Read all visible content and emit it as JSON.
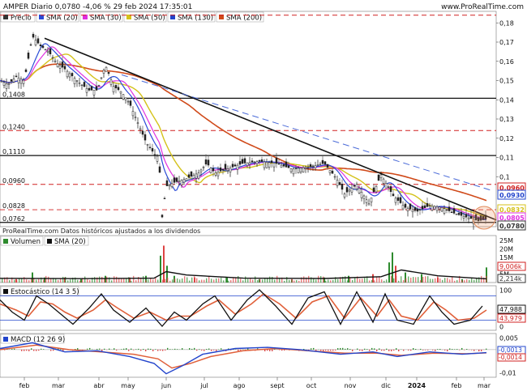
{
  "header": {
    "title": "AMPER Diario 0,0780 -4,06 % 29 feb 2024 17:35:01",
    "site": "www.ProRealTime.com"
  },
  "chart_data": [
    {
      "type": "candlestick",
      "panel": "price",
      "legend": [
        "Precio",
        "SMA (20)",
        "SMA (30)",
        "SMA (50)",
        "SMA (130)",
        "SMA (200)"
      ],
      "series_colors": {
        "Precio": "#333333",
        "SMA (20)": "#2a4bd7",
        "SMA (30)": "#e030e0",
        "SMA (50)": "#d4c21a",
        "SMA (130)": "#2244cc",
        "SMA (200)": "#d04a1a"
      },
      "ylim": [
        0.074,
        0.186
      ],
      "yticks": [
        0.18,
        0.17,
        0.16,
        0.15,
        0.14,
        0.13,
        0.12,
        0.11,
        0.1
      ],
      "ytick_labels": [
        "0,18",
        "0,17",
        "0,16",
        "0,15",
        "0,14",
        "0,13",
        "0,12",
        "0,11",
        "0,1"
      ],
      "horizontal_levels": [
        {
          "value": 0.1408,
          "label": "0,1408",
          "style": "solid"
        },
        {
          "value": 0.124,
          "label": "0,1240",
          "style": "dashed"
        },
        {
          "value": 0.111,
          "label": "0,1110",
          "style": "solid"
        },
        {
          "value": 0.096,
          "label": "0,0960",
          "style": "dashed"
        },
        {
          "value": 0.0828,
          "label": "0,0828",
          "style": "dashed"
        },
        {
          "value": 0.0762,
          "label": "0,0762",
          "style": "solid"
        },
        {
          "value": 0.184,
          "label": "",
          "style": "dashed"
        }
      ],
      "right_badges": [
        {
          "value": 0.096,
          "label": "0,0960",
          "color": "#d02020"
        },
        {
          "value": 0.093,
          "label": "0,0930",
          "color": "#2244cc"
        },
        {
          "value": 0.0832,
          "label": "0,0832",
          "color": "#d4c21a"
        },
        {
          "value": 0.0805,
          "label": "0,0805",
          "color": "#e030e0"
        },
        {
          "value": 0.078,
          "label": "0,0780",
          "color": "#333333"
        }
      ],
      "annotation": "ProRealTime.com Datos históricos ajustados a los dividendos",
      "xlabels": [
        "feb",
        "mar",
        "abr",
        "may",
        "jun",
        "jul",
        "ago",
        "sept",
        "oct",
        "nov",
        "dic",
        "2024",
        "feb",
        "mar"
      ],
      "close_path": [
        {
          "x": 0,
          "y": 0.15
        },
        {
          "x": 10,
          "y": 0.148
        },
        {
          "x": 20,
          "y": 0.152
        },
        {
          "x": 30,
          "y": 0.15
        },
        {
          "x": 40,
          "y": 0.173
        },
        {
          "x": 50,
          "y": 0.168
        },
        {
          "x": 60,
          "y": 0.165
        },
        {
          "x": 70,
          "y": 0.159
        },
        {
          "x": 80,
          "y": 0.156
        },
        {
          "x": 90,
          "y": 0.152
        },
        {
          "x": 100,
          "y": 0.148
        },
        {
          "x": 110,
          "y": 0.145
        },
        {
          "x": 120,
          "y": 0.145
        },
        {
          "x": 130,
          "y": 0.158
        },
        {
          "x": 140,
          "y": 0.147
        },
        {
          "x": 150,
          "y": 0.144
        },
        {
          "x": 160,
          "y": 0.138
        },
        {
          "x": 170,
          "y": 0.128
        },
        {
          "x": 180,
          "y": 0.118
        },
        {
          "x": 190,
          "y": 0.112
        },
        {
          "x": 196,
          "y": 0.11
        },
        {
          "x": 200,
          "y": 0.079
        },
        {
          "x": 205,
          "y": 0.095
        },
        {
          "x": 215,
          "y": 0.097
        },
        {
          "x": 230,
          "y": 0.099
        },
        {
          "x": 245,
          "y": 0.102
        },
        {
          "x": 255,
          "y": 0.107
        },
        {
          "x": 265,
          "y": 0.102
        },
        {
          "x": 280,
          "y": 0.104
        },
        {
          "x": 300,
          "y": 0.107
        },
        {
          "x": 320,
          "y": 0.108
        },
        {
          "x": 340,
          "y": 0.107
        },
        {
          "x": 360,
          "y": 0.104
        },
        {
          "x": 380,
          "y": 0.105
        },
        {
          "x": 400,
          "y": 0.107
        },
        {
          "x": 415,
          "y": 0.099
        },
        {
          "x": 425,
          "y": 0.091
        },
        {
          "x": 440,
          "y": 0.096
        },
        {
          "x": 455,
          "y": 0.086
        },
        {
          "x": 470,
          "y": 0.101
        },
        {
          "x": 485,
          "y": 0.09
        },
        {
          "x": 500,
          "y": 0.084
        },
        {
          "x": 515,
          "y": 0.082
        },
        {
          "x": 530,
          "y": 0.085
        },
        {
          "x": 545,
          "y": 0.084
        },
        {
          "x": 560,
          "y": 0.081
        },
        {
          "x": 575,
          "y": 0.079
        },
        {
          "x": 590,
          "y": 0.077
        },
        {
          "x": 600,
          "y": 0.078
        }
      ],
      "trendlines": [
        {
          "name": "downtrend",
          "from": {
            "x": 55,
            "y": 0.172
          },
          "to": {
            "x": 612,
            "y": 0.0775
          }
        },
        {
          "name": "sma130-dashed",
          "from": {
            "x": 150,
            "y": 0.153
          },
          "to": {
            "x": 605,
            "y": 0.093
          }
        }
      ]
    },
    {
      "type": "bar",
      "panel": "volume",
      "legend": [
        "Volumen",
        "SMA (20)"
      ],
      "ylim": [
        0,
        28
      ],
      "ytick_labels": [
        "25M",
        "20M",
        "15M",
        "10M",
        "5M",
        "0"
      ],
      "badges": [
        {
          "label": "9,006k",
          "color": "#d02020"
        },
        {
          "label": "2,214k",
          "color": "#333333"
        }
      ],
      "volume_series": [
        {
          "x": 20,
          "v": 2
        },
        {
          "x": 40,
          "v": 6
        },
        {
          "x": 55,
          "v": 3
        },
        {
          "x": 80,
          "v": 3
        },
        {
          "x": 100,
          "v": 2
        },
        {
          "x": 130,
          "v": 4
        },
        {
          "x": 160,
          "v": 3
        },
        {
          "x": 180,
          "v": 4
        },
        {
          "x": 198,
          "v": 16
        },
        {
          "x": 202,
          "v": 22
        },
        {
          "x": 206,
          "v": 10
        },
        {
          "x": 215,
          "v": 4
        },
        {
          "x": 240,
          "v": 3
        },
        {
          "x": 280,
          "v": 3
        },
        {
          "x": 320,
          "v": 2
        },
        {
          "x": 360,
          "v": 2
        },
        {
          "x": 400,
          "v": 3
        },
        {
          "x": 430,
          "v": 4
        },
        {
          "x": 460,
          "v": 5
        },
        {
          "x": 480,
          "v": 12
        },
        {
          "x": 484,
          "v": 18
        },
        {
          "x": 488,
          "v": 10
        },
        {
          "x": 500,
          "v": 6
        },
        {
          "x": 520,
          "v": 5
        },
        {
          "x": 540,
          "v": 3
        },
        {
          "x": 570,
          "v": 2
        },
        {
          "x": 600,
          "v": 9
        }
      ],
      "sma": [
        {
          "x": 0,
          "v": 2.5
        },
        {
          "x": 100,
          "v": 2.3
        },
        {
          "x": 190,
          "v": 2.6
        },
        {
          "x": 205,
          "v": 6.5
        },
        {
          "x": 230,
          "v": 4.5
        },
        {
          "x": 300,
          "v": 2.6
        },
        {
          "x": 400,
          "v": 2.4
        },
        {
          "x": 470,
          "v": 3.5
        },
        {
          "x": 495,
          "v": 7.5
        },
        {
          "x": 540,
          "v": 4.0
        },
        {
          "x": 600,
          "v": 2.2
        }
      ]
    },
    {
      "type": "line",
      "panel": "stochastic",
      "legend": [
        "Estocástico (14 3 5)"
      ],
      "ylim": [
        -5,
        105
      ],
      "ytick_labels": [
        "100",
        "0"
      ],
      "levels": [
        80,
        20
      ],
      "badges": [
        {
          "label": "47,988",
          "color": "#111111"
        },
        {
          "label": "43,979",
          "color": "#d02020"
        }
      ],
      "k": [
        {
          "x": 0,
          "v": 70
        },
        {
          "x": 15,
          "v": 40
        },
        {
          "x": 30,
          "v": 20
        },
        {
          "x": 45,
          "v": 80
        },
        {
          "x": 60,
          "v": 60
        },
        {
          "x": 75,
          "v": 35
        },
        {
          "x": 90,
          "v": 10
        },
        {
          "x": 110,
          "v": 50
        },
        {
          "x": 125,
          "v": 85
        },
        {
          "x": 140,
          "v": 45
        },
        {
          "x": 160,
          "v": 15
        },
        {
          "x": 180,
          "v": 50
        },
        {
          "x": 200,
          "v": 5
        },
        {
          "x": 215,
          "v": 40
        },
        {
          "x": 230,
          "v": 20
        },
        {
          "x": 250,
          "v": 60
        },
        {
          "x": 265,
          "v": 80
        },
        {
          "x": 285,
          "v": 20
        },
        {
          "x": 305,
          "v": 70
        },
        {
          "x": 320,
          "v": 95
        },
        {
          "x": 340,
          "v": 55
        },
        {
          "x": 360,
          "v": 10
        },
        {
          "x": 380,
          "v": 75
        },
        {
          "x": 400,
          "v": 90
        },
        {
          "x": 420,
          "v": 10
        },
        {
          "x": 440,
          "v": 90
        },
        {
          "x": 460,
          "v": 15
        },
        {
          "x": 475,
          "v": 85
        },
        {
          "x": 490,
          "v": 20
        },
        {
          "x": 510,
          "v": 10
        },
        {
          "x": 530,
          "v": 80
        },
        {
          "x": 545,
          "v": 40
        },
        {
          "x": 560,
          "v": 10
        },
        {
          "x": 580,
          "v": 20
        },
        {
          "x": 595,
          "v": 55
        }
      ],
      "d": [
        {
          "x": 0,
          "v": 60
        },
        {
          "x": 20,
          "v": 45
        },
        {
          "x": 35,
          "v": 30
        },
        {
          "x": 50,
          "v": 65
        },
        {
          "x": 65,
          "v": 60
        },
        {
          "x": 80,
          "v": 40
        },
        {
          "x": 95,
          "v": 25
        },
        {
          "x": 115,
          "v": 45
        },
        {
          "x": 130,
          "v": 70
        },
        {
          "x": 145,
          "v": 50
        },
        {
          "x": 165,
          "v": 25
        },
        {
          "x": 185,
          "v": 40
        },
        {
          "x": 205,
          "v": 20
        },
        {
          "x": 220,
          "v": 30
        },
        {
          "x": 235,
          "v": 30
        },
        {
          "x": 255,
          "v": 55
        },
        {
          "x": 270,
          "v": 70
        },
        {
          "x": 290,
          "v": 35
        },
        {
          "x": 310,
          "v": 60
        },
        {
          "x": 325,
          "v": 85
        },
        {
          "x": 345,
          "v": 60
        },
        {
          "x": 365,
          "v": 25
        },
        {
          "x": 385,
          "v": 65
        },
        {
          "x": 405,
          "v": 80
        },
        {
          "x": 425,
          "v": 25
        },
        {
          "x": 445,
          "v": 75
        },
        {
          "x": 465,
          "v": 30
        },
        {
          "x": 480,
          "v": 70
        },
        {
          "x": 495,
          "v": 30
        },
        {
          "x": 515,
          "v": 20
        },
        {
          "x": 535,
          "v": 65
        },
        {
          "x": 550,
          "v": 45
        },
        {
          "x": 565,
          "v": 20
        },
        {
          "x": 585,
          "v": 25
        },
        {
          "x": 600,
          "v": 45
        }
      ]
    },
    {
      "type": "line",
      "panel": "macd",
      "legend": [
        "MACD (12 26 9)"
      ],
      "ylim": [
        -0.012,
        0.007
      ],
      "ytick_labels": [
        "0,005",
        "0",
        "-0,01"
      ],
      "badges": [
        {
          "label": "-0,0013",
          "color": "#2244cc"
        },
        {
          "label": "-0,0014",
          "color": "#d02020"
        }
      ],
      "macd": [
        {
          "x": 0,
          "v": 0.0005
        },
        {
          "x": 40,
          "v": 0.003
        },
        {
          "x": 80,
          "v": -0.001
        },
        {
          "x": 120,
          "v": -0.0005
        },
        {
          "x": 160,
          "v": -0.003
        },
        {
          "x": 190,
          "v": -0.006
        },
        {
          "x": 205,
          "v": -0.0105
        },
        {
          "x": 225,
          "v": -0.007
        },
        {
          "x": 250,
          "v": -0.002
        },
        {
          "x": 290,
          "v": 0.0005
        },
        {
          "x": 330,
          "v": 0.001
        },
        {
          "x": 370,
          "v": 0.0
        },
        {
          "x": 420,
          "v": -0.002
        },
        {
          "x": 460,
          "v": -0.001
        },
        {
          "x": 490,
          "v": -0.003
        },
        {
          "x": 530,
          "v": -0.001
        },
        {
          "x": 570,
          "v": -0.002
        },
        {
          "x": 600,
          "v": -0.0013
        }
      ],
      "signal": [
        {
          "x": 0,
          "v": 0.0
        },
        {
          "x": 45,
          "v": 0.002
        },
        {
          "x": 85,
          "v": 0.0
        },
        {
          "x": 125,
          "v": -0.001
        },
        {
          "x": 165,
          "v": -0.002
        },
        {
          "x": 195,
          "v": -0.004
        },
        {
          "x": 212,
          "v": -0.008
        },
        {
          "x": 235,
          "v": -0.006
        },
        {
          "x": 260,
          "v": -0.003
        },
        {
          "x": 300,
          "v": -0.0005
        },
        {
          "x": 340,
          "v": 0.0005
        },
        {
          "x": 380,
          "v": -0.0005
        },
        {
          "x": 425,
          "v": -0.0015
        },
        {
          "x": 465,
          "v": -0.0015
        },
        {
          "x": 495,
          "v": -0.0025
        },
        {
          "x": 535,
          "v": -0.0015
        },
        {
          "x": 575,
          "v": -0.0018
        },
        {
          "x": 600,
          "v": -0.0014
        }
      ]
    }
  ]
}
